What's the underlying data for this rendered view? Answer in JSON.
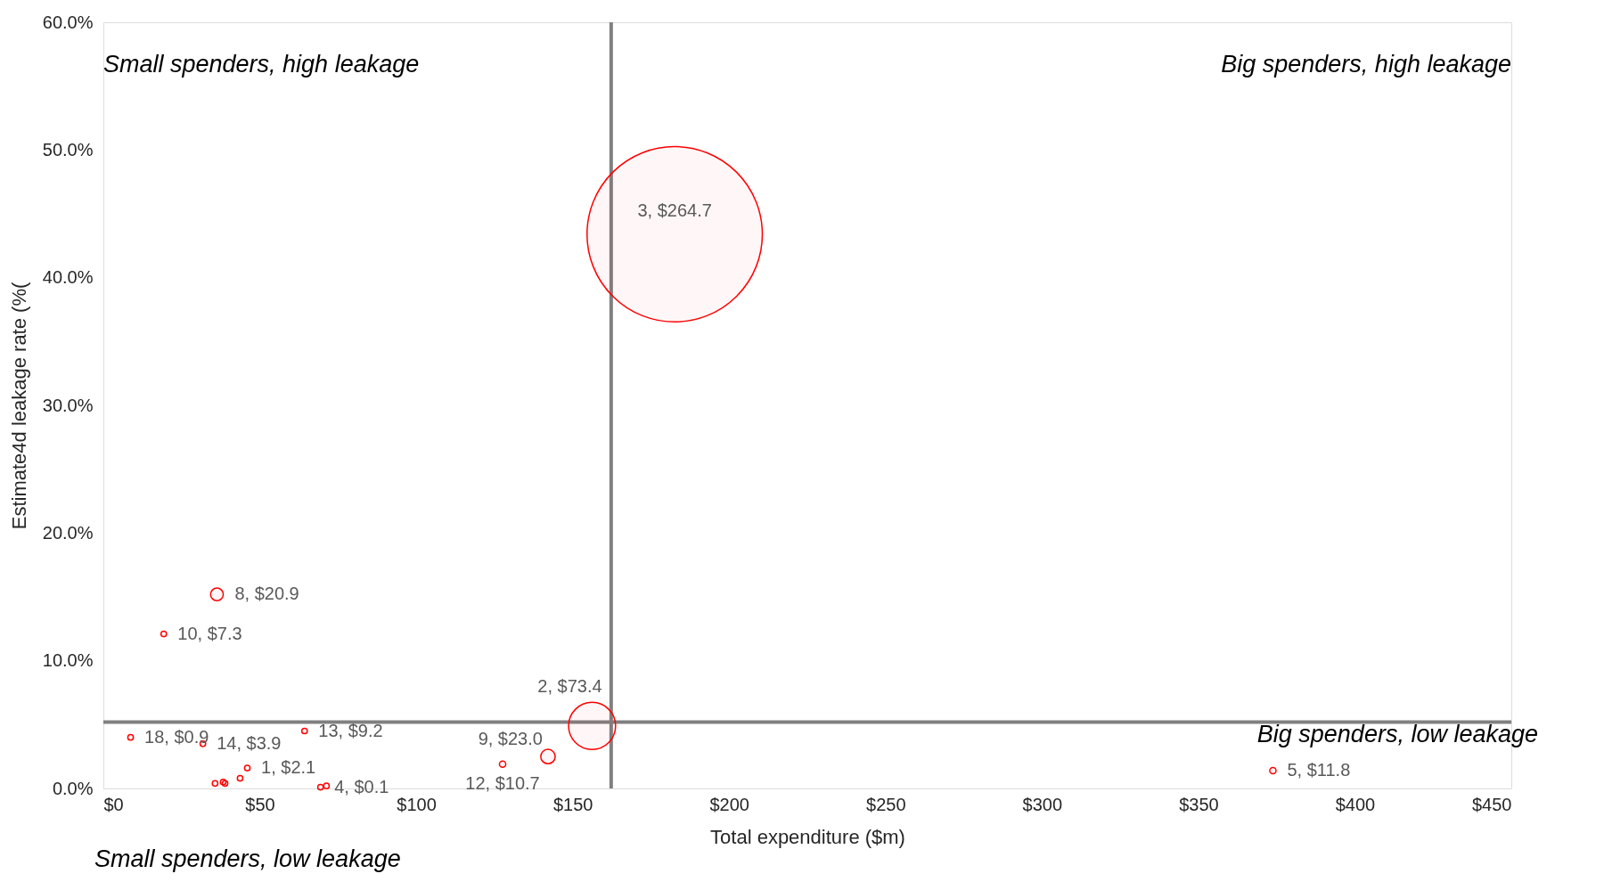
{
  "chart_data": {
    "type": "bubble",
    "xlabel": "Total expenditure ($m)",
    "ylabel": "Estimate4d leakage rate (%(",
    "annotations": [
      "Small spenders, high leakage",
      "Big spenders, high leakage",
      "Big spenders, low leakage",
      "Small spenders, low leakage"
    ],
    "series": [
      {
        "color": "#ff0000",
        "x": [
          182.6,
          156.2,
          36.3,
          19.3,
          142.1,
          127.6,
          373.8,
          64.3,
          8.7,
          31.8,
          46,
          69.4,
          71.3,
          35.7,
          38.3,
          38.9,
          43.7
        ],
        "values": [
          43.4,
          4.9,
          15.2,
          12.1,
          2.5,
          1.9,
          1.4,
          4.5,
          4.0,
          3.5,
          1.6,
          0.1,
          0.2,
          0.4,
          0.5,
          0.4,
          0.8
        ],
        "sizes": [
          1,
          0.072,
          0.0052,
          0.001,
          0.0068,
          0.0013,
          0.0013,
          0.001,
          0.001,
          0.001,
          0.001,
          0.001,
          0.001,
          0.001,
          0.001,
          0.001,
          0.001
        ],
        "value_labels": [
          "3, $264.7",
          "2, $73.4",
          "8, $20.9",
          "10, $7.3",
          "9, $23.0",
          "12, $10.7",
          "5, $11.8",
          "13, $9.2",
          "18, $0.9",
          "14, $3.9",
          "1, $2.1",
          "4, $0.1",
          null,
          null,
          null,
          null,
          null
        ]
      }
    ],
    "xlim": [
      0,
      450
    ],
    "xticks": [
      {
        "value": 0,
        "label": "$0"
      },
      {
        "value": 50,
        "label": "$50"
      },
      {
        "value": 100,
        "label": "$100"
      },
      {
        "value": 150,
        "label": "$150"
      },
      {
        "value": 200,
        "label": "$200"
      },
      {
        "value": 250,
        "label": "$250"
      },
      {
        "value": 300,
        "label": "$300"
      },
      {
        "value": 350,
        "label": "$350"
      },
      {
        "value": 400,
        "label": "$400"
      },
      {
        "value": 450,
        "label": "$450"
      }
    ],
    "ylim": [
      0,
      60
    ],
    "yticks": [
      {
        "value": 0,
        "label": "0.0%"
      },
      {
        "value": 10,
        "label": "10.0%"
      },
      {
        "value": 20,
        "label": "20.0%"
      },
      {
        "value": 30,
        "label": "30.0%"
      },
      {
        "value": 40,
        "label": "40.0%"
      },
      {
        "value": 50,
        "label": "50.0%"
      },
      {
        "value": 60,
        "label": "60.0%"
      }
    ],
    "ref_lines": [
      {
        "axis": "x",
        "value": 162.3,
        "color": "#808080"
      },
      {
        "axis": "y",
        "value": 5.2,
        "color": "#808080"
      }
    ],
    "grid": false,
    "marker": "circle"
  }
}
